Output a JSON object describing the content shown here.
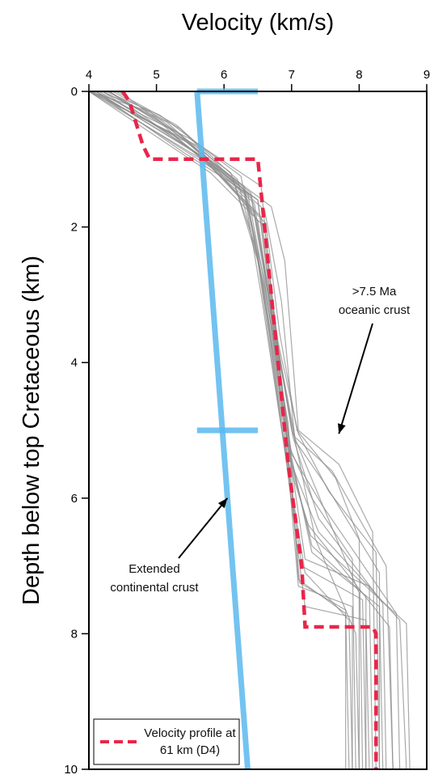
{
  "chart_data": {
    "type": "line",
    "title": "",
    "xlabel": "Velocity (km/s)",
    "ylabel": "Depth below top Cretaceous (km)",
    "xlim": [
      4,
      9
    ],
    "ylim": [
      0,
      10
    ],
    "y_inverted": true,
    "x_ticks": [
      4,
      5,
      6,
      7,
      8,
      9
    ],
    "y_ticks": [
      0,
      2,
      4,
      6,
      8,
      10
    ],
    "x_axis_position": "top",
    "grid": false,
    "legend": {
      "position": "bottom-left",
      "entries": [
        {
          "line1": "Velocity profile at",
          "line2": "61 km (D4)"
        }
      ]
    },
    "colors": {
      "profile": "#e8264a",
      "continental": "#5bb8ee",
      "oceanic": "#8c8c8c"
    },
    "series": [
      {
        "name": "Velocity profile at 61 km (D4)",
        "style": "dashed",
        "x": [
          4.5,
          4.6,
          4.8,
          4.9,
          5.1,
          6.5,
          6.55,
          6.95,
          7.15,
          7.2,
          8.2,
          8.25,
          8.25
        ],
        "y": [
          0,
          0.15,
          0.8,
          1.0,
          1.0,
          1.0,
          1.5,
          5.5,
          7.0,
          7.9,
          7.9,
          8.0,
          10.0
        ]
      },
      {
        "name": "Extended continental crust",
        "style": "solid-thick",
        "x": [
          5.6,
          6.35
        ],
        "y": [
          0,
          10
        ],
        "error_bars": [
          {
            "y": 0,
            "x_low": 5.6,
            "x_high": 6.5
          },
          {
            "y": 5,
            "x_low": 5.6,
            "x_high": 6.5
          }
        ]
      },
      {
        "name": ">7.5 Ma oceanic crust",
        "style": "thin-multi",
        "profiles": [
          {
            "x": [
              4.0,
              5.2,
              6.3,
              6.55,
              6.9,
              7.2,
              8.1,
              8.15
            ],
            "y": [
              0,
              0.6,
              1.5,
              3.0,
              5.3,
              7.6,
              7.8,
              10.0
            ]
          },
          {
            "x": [
              4.2,
              5.0,
              6.4,
              6.6,
              7.0,
              7.3,
              8.3,
              8.35
            ],
            "y": [
              0,
              0.4,
              1.5,
              2.6,
              5.4,
              6.8,
              7.6,
              10.0
            ]
          },
          {
            "x": [
              4.1,
              5.4,
              6.5,
              6.7,
              7.0,
              7.5,
              8.0,
              8.0
            ],
            "y": [
              0,
              0.9,
              1.6,
              3.2,
              5.0,
              6.2,
              7.4,
              10.0
            ]
          },
          {
            "x": [
              4.3,
              5.7,
              6.45,
              6.75,
              6.95,
              7.3,
              7.9,
              7.95
            ],
            "y": [
              0,
              1.0,
              1.8,
              3.5,
              5.2,
              6.0,
              6.9,
              10.0
            ]
          },
          {
            "x": [
              4.0,
              5.8,
              6.6,
              6.8,
              7.05,
              7.6,
              8.4,
              8.5
            ],
            "y": [
              0,
              1.2,
              2.0,
              3.8,
              5.1,
              5.6,
              7.0,
              10.0
            ]
          },
          {
            "x": [
              4.4,
              5.3,
              6.2,
              6.6,
              6.95,
              7.1,
              7.8,
              7.85
            ],
            "y": [
              0,
              0.5,
              1.3,
              2.9,
              4.9,
              7.2,
              7.7,
              10.0
            ]
          },
          {
            "x": [
              4.1,
              5.5,
              6.55,
              6.7,
              7.0,
              7.4,
              8.6,
              8.7
            ],
            "y": [
              0,
              0.7,
              1.4,
              3.0,
              5.5,
              6.5,
              7.8,
              10.0
            ]
          },
          {
            "x": [
              4.0,
              4.9,
              6.1,
              6.5,
              6.85,
              7.15,
              8.05,
              8.1
            ],
            "y": [
              0,
              0.3,
              1.2,
              2.4,
              4.8,
              7.0,
              7.5,
              10.0
            ]
          },
          {
            "x": [
              4.2,
              5.9,
              6.7,
              6.9,
              7.1,
              7.7,
              8.2,
              8.25
            ],
            "y": [
              0,
              1.1,
              1.7,
              2.5,
              5.0,
              5.5,
              6.5,
              10.0
            ]
          },
          {
            "x": [
              4.3,
              5.1,
              6.35,
              6.65,
              6.9,
              7.25,
              8.45,
              8.5
            ],
            "y": [
              0,
              0.5,
              1.6,
              3.4,
              5.3,
              6.4,
              7.9,
              10.0
            ]
          },
          {
            "x": [
              4.0,
              5.6,
              6.5,
              6.75,
              7.0,
              7.35,
              7.95,
              8.0
            ],
            "y": [
              0,
              0.8,
              1.9,
              3.6,
              4.9,
              6.6,
              8.0,
              10.0
            ]
          },
          {
            "x": [
              4.15,
              5.25,
              6.3,
              6.6,
              6.95,
              7.2,
              8.15,
              8.2
            ],
            "y": [
              0,
              0.65,
              1.45,
              2.8,
              5.2,
              6.9,
              7.3,
              10.0
            ]
          },
          {
            "x": [
              4.05,
              5.45,
              6.6,
              6.85,
              7.05,
              7.5,
              8.3,
              8.3
            ],
            "y": [
              0,
              0.75,
              1.75,
              3.1,
              5.15,
              5.8,
              7.1,
              10.0
            ]
          },
          {
            "x": [
              4.25,
              5.05,
              6.25,
              6.55,
              6.9,
              7.1,
              7.9,
              7.9
            ],
            "y": [
              0,
              0.35,
              1.25,
              2.7,
              5.0,
              7.3,
              7.6,
              10.0
            ]
          },
          {
            "x": [
              4.1,
              5.65,
              6.45,
              6.7,
              7.0,
              7.45,
              8.55,
              8.6
            ],
            "y": [
              0,
              0.95,
              1.65,
              3.3,
              5.35,
              6.1,
              7.7,
              10.0
            ]
          },
          {
            "x": [
              4.35,
              5.35,
              6.4,
              6.65,
              6.95,
              7.3,
              8.1,
              8.1
            ],
            "y": [
              0,
              0.55,
              1.55,
              3.0,
              5.25,
              6.7,
              7.45,
              10.0
            ]
          },
          {
            "x": [
              4.0,
              5.75,
              6.55,
              6.8,
              7.1,
              7.55,
              8.25,
              8.3
            ],
            "y": [
              0,
              1.05,
              1.85,
              3.7,
              5.05,
              5.9,
              6.8,
              10.0
            ]
          },
          {
            "x": [
              4.2,
              5.15,
              6.15,
              6.5,
              6.85,
              7.2,
              7.85,
              7.9
            ],
            "y": [
              0,
              0.45,
              1.35,
              2.5,
              4.95,
              7.1,
              7.8,
              10.0
            ]
          },
          {
            "x": [
              4.1,
              5.5,
              6.5,
              6.72,
              7.02,
              7.4,
              8.35,
              8.4
            ],
            "y": [
              0,
              0.85,
              1.6,
              3.25,
              5.1,
              6.3,
              7.55,
              10.0
            ]
          },
          {
            "x": [
              4.3,
              5.3,
              6.35,
              6.62,
              6.98,
              7.28,
              8.7,
              8.75
            ],
            "y": [
              0,
              0.6,
              1.5,
              2.95,
              5.45,
              6.55,
              7.85,
              10.0
            ]
          },
          {
            "x": [
              4.05,
              5.85,
              6.62,
              6.82,
              7.08,
              7.65,
              8.0,
              8.05
            ],
            "y": [
              0,
              1.15,
              1.95,
              3.55,
              5.0,
              5.7,
              6.6,
              10.0
            ]
          },
          {
            "x": [
              4.45,
              5.2,
              6.3,
              6.58,
              6.92,
              7.12,
              7.8,
              7.8
            ],
            "y": [
              0,
              0.55,
              1.4,
              2.85,
              5.05,
              7.25,
              7.65,
              10.0
            ]
          }
        ]
      }
    ],
    "annotations": [
      {
        "lines": [
          ">7.5 Ma",
          "oceanic crust"
        ],
        "arrow_to": [
          7.7,
          5.05
        ]
      },
      {
        "lines": [
          "Extended",
          "continental crust"
        ],
        "arrow_to": [
          6.05,
          6.0
        ]
      }
    ]
  }
}
